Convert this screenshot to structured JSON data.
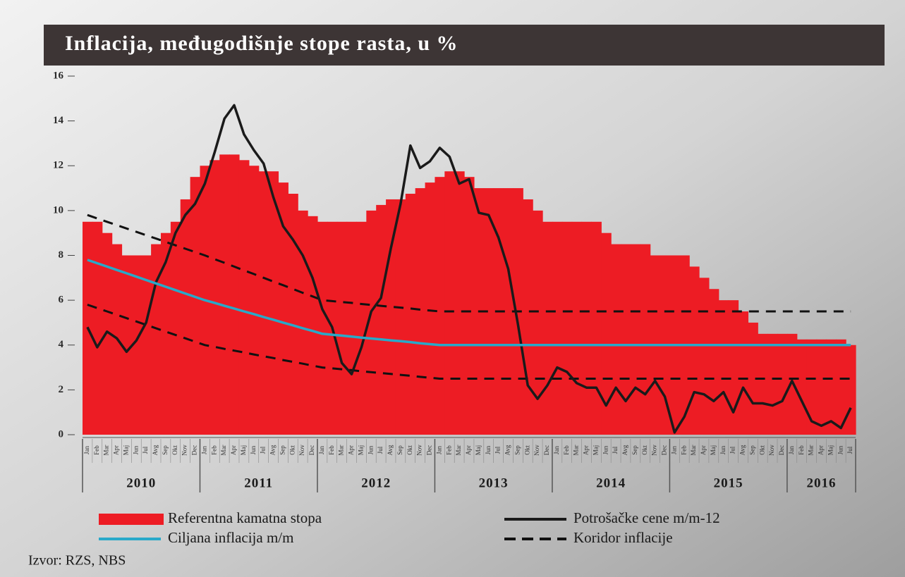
{
  "chart_data": {
    "type": "line",
    "title": "Inflacija, međugodišnje stope rasta, u %",
    "source": "Izvor: RZS, NBS",
    "ylim": [
      0,
      16
    ],
    "yticks": [
      0,
      2,
      4,
      6,
      8,
      10,
      12,
      14,
      16
    ],
    "categories": [
      "Jan",
      "Feb",
      "Mar",
      "Apr",
      "Maj",
      "Jun",
      "Jul",
      "Avg",
      "Sep",
      "Okt",
      "Nov",
      "Dec",
      "Jan",
      "Feb",
      "Mar",
      "Apr",
      "Maj",
      "Jun",
      "Jul",
      "Avg",
      "Sep",
      "Okt",
      "Nov",
      "Dec",
      "Jan",
      "Feb",
      "Mar",
      "Apr",
      "Maj",
      "Jun",
      "Jul",
      "Avg",
      "Sep",
      "Okt",
      "Nov",
      "Dec",
      "Jan",
      "Feb",
      "Mar",
      "Apr",
      "Maj",
      "Jun",
      "Jul",
      "Avg",
      "Sep",
      "Okt",
      "Nov",
      "Dec",
      "Jan",
      "Feb",
      "Mar",
      "Apr",
      "Maj",
      "Jun",
      "Jul",
      "Avg",
      "Sep",
      "Okt",
      "Nov",
      "Dec",
      "Jan",
      "Feb",
      "Mar",
      "Apr",
      "Maj",
      "Jun",
      "Jul",
      "Avg",
      "Sep",
      "Okt",
      "Nov",
      "Dec",
      "Jan",
      "Feb",
      "Mar",
      "Apr",
      "Maj",
      "Jun",
      "Jul"
    ],
    "year_groups": [
      {
        "label": "2010",
        "months": 12
      },
      {
        "label": "2011",
        "months": 12
      },
      {
        "label": "2012",
        "months": 12
      },
      {
        "label": "2013",
        "months": 12
      },
      {
        "label": "2014",
        "months": 12
      },
      {
        "label": "2015",
        "months": 12
      },
      {
        "label": "2016",
        "months": 7
      }
    ],
    "series": [
      {
        "name": "Referentna kamatna stopa",
        "color": "#ed1c24",
        "kind": "step-area",
        "values": [
          9.5,
          9.5,
          9.0,
          8.5,
          8.0,
          8.0,
          8.0,
          8.5,
          9.0,
          9.5,
          10.5,
          11.5,
          12.0,
          12.25,
          12.5,
          12.5,
          12.25,
          12.0,
          11.75,
          11.75,
          11.25,
          10.75,
          10.0,
          9.75,
          9.5,
          9.5,
          9.5,
          9.5,
          9.5,
          10.0,
          10.25,
          10.5,
          10.5,
          10.75,
          11.0,
          11.25,
          11.5,
          11.75,
          11.75,
          11.5,
          11.0,
          11.0,
          11.0,
          11.0,
          11.0,
          10.5,
          10.0,
          9.5,
          9.5,
          9.5,
          9.5,
          9.5,
          9.5,
          9.0,
          8.5,
          8.5,
          8.5,
          8.5,
          8.0,
          8.0,
          8.0,
          8.0,
          7.5,
          7.0,
          6.5,
          6.0,
          6.0,
          5.5,
          5.0,
          4.5,
          4.5,
          4.5,
          4.5,
          4.25,
          4.25,
          4.25,
          4.25,
          4.25,
          4.0
        ]
      },
      {
        "name": "Potrošačke cene m/m-12",
        "color": "#1a1a1a",
        "kind": "line",
        "values": [
          4.8,
          3.9,
          4.6,
          4.3,
          3.7,
          4.2,
          5.0,
          6.8,
          7.7,
          9.0,
          9.8,
          10.3,
          11.2,
          12.6,
          14.1,
          14.7,
          13.4,
          12.7,
          12.1,
          10.6,
          9.3,
          8.7,
          8.0,
          7.0,
          5.6,
          4.8,
          3.2,
          2.7,
          3.9,
          5.5,
          6.1,
          8.3,
          10.3,
          12.9,
          11.9,
          12.2,
          12.8,
          12.4,
          11.2,
          11.4,
          9.9,
          9.8,
          8.8,
          7.4,
          4.9,
          2.2,
          1.6,
          2.2,
          3.0,
          2.8,
          2.3,
          2.1,
          2.1,
          1.3,
          2.1,
          1.5,
          2.1,
          1.8,
          2.4,
          1.7,
          0.1,
          0.8,
          1.9,
          1.8,
          1.5,
          1.9,
          1.0,
          2.1,
          1.4,
          1.4,
          1.3,
          1.5,
          2.4,
          1.5,
          0.6,
          0.4,
          0.6,
          0.3,
          1.2
        ]
      },
      {
        "name": "Ciljana inflacija m/m",
        "color": "#29a9c9",
        "kind": "line",
        "values": [
          7.8,
          7.65,
          7.5,
          7.35,
          7.2,
          7.05,
          6.9,
          6.75,
          6.6,
          6.45,
          6.3,
          6.15,
          6.0,
          5.88,
          5.75,
          5.63,
          5.5,
          5.38,
          5.25,
          5.13,
          5.0,
          4.88,
          4.75,
          4.63,
          4.5,
          4.46,
          4.42,
          4.38,
          4.33,
          4.29,
          4.25,
          4.21,
          4.17,
          4.13,
          4.08,
          4.04,
          4.0,
          4.0,
          4.0,
          4.0,
          4.0,
          4.0,
          4.0,
          4.0,
          4.0,
          4.0,
          4.0,
          4.0,
          4.0,
          4.0,
          4.0,
          4.0,
          4.0,
          4.0,
          4.0,
          4.0,
          4.0,
          4.0,
          4.0,
          4.0,
          4.0,
          4.0,
          4.0,
          4.0,
          4.0,
          4.0,
          4.0,
          4.0,
          4.0,
          4.0,
          4.0,
          4.0,
          4.0,
          4.0,
          4.0,
          4.0,
          4.0,
          4.0,
          4.0
        ]
      },
      {
        "name": "Koridor inflacije",
        "color": "#111111",
        "kind": "dashed-band",
        "values": [
          9.8,
          9.65,
          9.5,
          9.35,
          9.2,
          9.05,
          8.9,
          8.75,
          8.6,
          8.45,
          8.3,
          8.15,
          8.0,
          7.83,
          7.67,
          7.5,
          7.33,
          7.17,
          7.0,
          6.83,
          6.67,
          6.5,
          6.33,
          6.17,
          6.0,
          5.96,
          5.92,
          5.88,
          5.83,
          5.79,
          5.75,
          5.71,
          5.67,
          5.63,
          5.58,
          5.54,
          5.5,
          5.5,
          5.5,
          5.5,
          5.5,
          5.5,
          5.5,
          5.5,
          5.5,
          5.5,
          5.5,
          5.5,
          5.5,
          5.5,
          5.5,
          5.5,
          5.5,
          5.5,
          5.5,
          5.5,
          5.5,
          5.5,
          5.5,
          5.5,
          5.5,
          5.5,
          5.5,
          5.5,
          5.5,
          5.5,
          5.5,
          5.5,
          5.5,
          5.5,
          5.5,
          5.5,
          5.5,
          5.5,
          5.5,
          5.5,
          5.5,
          5.5,
          5.5
        ],
        "lower": [
          5.8,
          5.65,
          5.5,
          5.35,
          5.2,
          5.05,
          4.9,
          4.75,
          4.6,
          4.45,
          4.3,
          4.15,
          4.0,
          3.92,
          3.83,
          3.75,
          3.67,
          3.58,
          3.5,
          3.42,
          3.33,
          3.25,
          3.17,
          3.08,
          3.0,
          2.96,
          2.92,
          2.88,
          2.83,
          2.79,
          2.75,
          2.71,
          2.67,
          2.63,
          2.58,
          2.54,
          2.5,
          2.5,
          2.5,
          2.5,
          2.5,
          2.5,
          2.5,
          2.5,
          2.5,
          2.5,
          2.5,
          2.5,
          2.5,
          2.5,
          2.5,
          2.5,
          2.5,
          2.5,
          2.5,
          2.5,
          2.5,
          2.5,
          2.5,
          2.5,
          2.5,
          2.5,
          2.5,
          2.5,
          2.5,
          2.5,
          2.5,
          2.5,
          2.5,
          2.5,
          2.5,
          2.5,
          2.5,
          2.5,
          2.5,
          2.5,
          2.5,
          2.5,
          2.5
        ]
      }
    ]
  }
}
